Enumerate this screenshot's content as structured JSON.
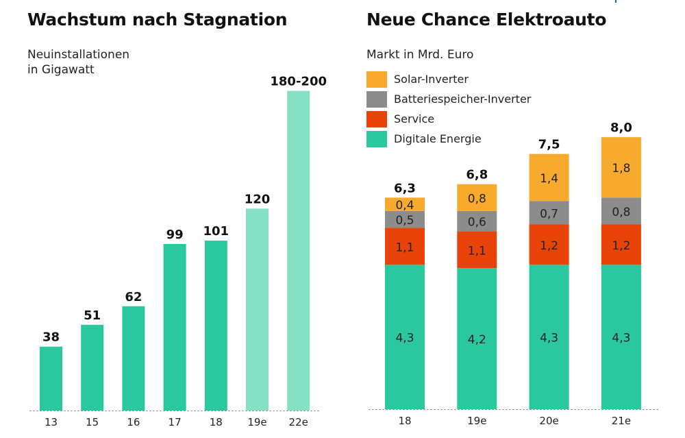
{
  "chart_data": [
    {
      "type": "bar",
      "title": "Wachstum nach Stagnation",
      "subtitle": [
        "Neuinstallationen",
        "in Gigawatt"
      ],
      "xlabel": "",
      "ylabel": "Neuinstallationen in Gigawatt",
      "categories": [
        "13",
        "15",
        "16",
        "17",
        "18",
        "19e",
        "22e"
      ],
      "values": [
        38,
        51,
        62,
        99,
        101,
        120,
        190
      ],
      "data_labels": [
        "38",
        "51",
        "62",
        "99",
        "101",
        "120",
        "180-200"
      ],
      "estimated": [
        false,
        false,
        false,
        false,
        false,
        true,
        true
      ],
      "colors": {
        "actual": "#2bc79e",
        "estimate": "#86e0c3"
      },
      "ylim": [
        0,
        200
      ],
      "grid": false
    },
    {
      "type": "bar",
      "stacked": true,
      "title": "Neue Chance Elektroauto",
      "subtitle": "Markt in Mrd. Euro",
      "xlabel": "",
      "ylabel": "Markt in Mrd. Euro",
      "categories": [
        "18",
        "19e",
        "20e",
        "21e"
      ],
      "series": [
        {
          "name": "Digitale Energie",
          "color": "#2bc79e",
          "values": [
            4.3,
            4.2,
            4.3,
            4.3
          ],
          "labels": [
            "4,3",
            "4,2",
            "4,3",
            "4,3"
          ]
        },
        {
          "name": "Service",
          "color": "#e8440a",
          "values": [
            1.1,
            1.1,
            1.2,
            1.2
          ],
          "labels": [
            "1,1",
            "1,1",
            "1,2",
            "1,2"
          ]
        },
        {
          "name": "Batteriespeicher-Inverter",
          "color": "#8c8c8c",
          "values": [
            0.5,
            0.6,
            0.7,
            0.8
          ],
          "labels": [
            "0,5",
            "0,6",
            "0,7",
            "0,8"
          ]
        },
        {
          "name": "Solar-Inverter",
          "color": "#f7aa2e",
          "values": [
            0.4,
            0.8,
            1.4,
            1.8
          ],
          "labels": [
            "0,4",
            "0,8",
            "1,4",
            "1,8"
          ]
        }
      ],
      "totals": [
        6.3,
        6.8,
        7.5,
        8.0
      ],
      "total_labels": [
        "6,3",
        "6,8",
        "7,5",
        "8,0"
      ],
      "legend": {
        "placement": "top-left",
        "order": [
          "Solar-Inverter",
          "Batteriespeicher-Inverter",
          "Service",
          "Digitale Energie"
        ]
      },
      "ylim": [
        0,
        8.5
      ],
      "grid": false
    }
  ]
}
